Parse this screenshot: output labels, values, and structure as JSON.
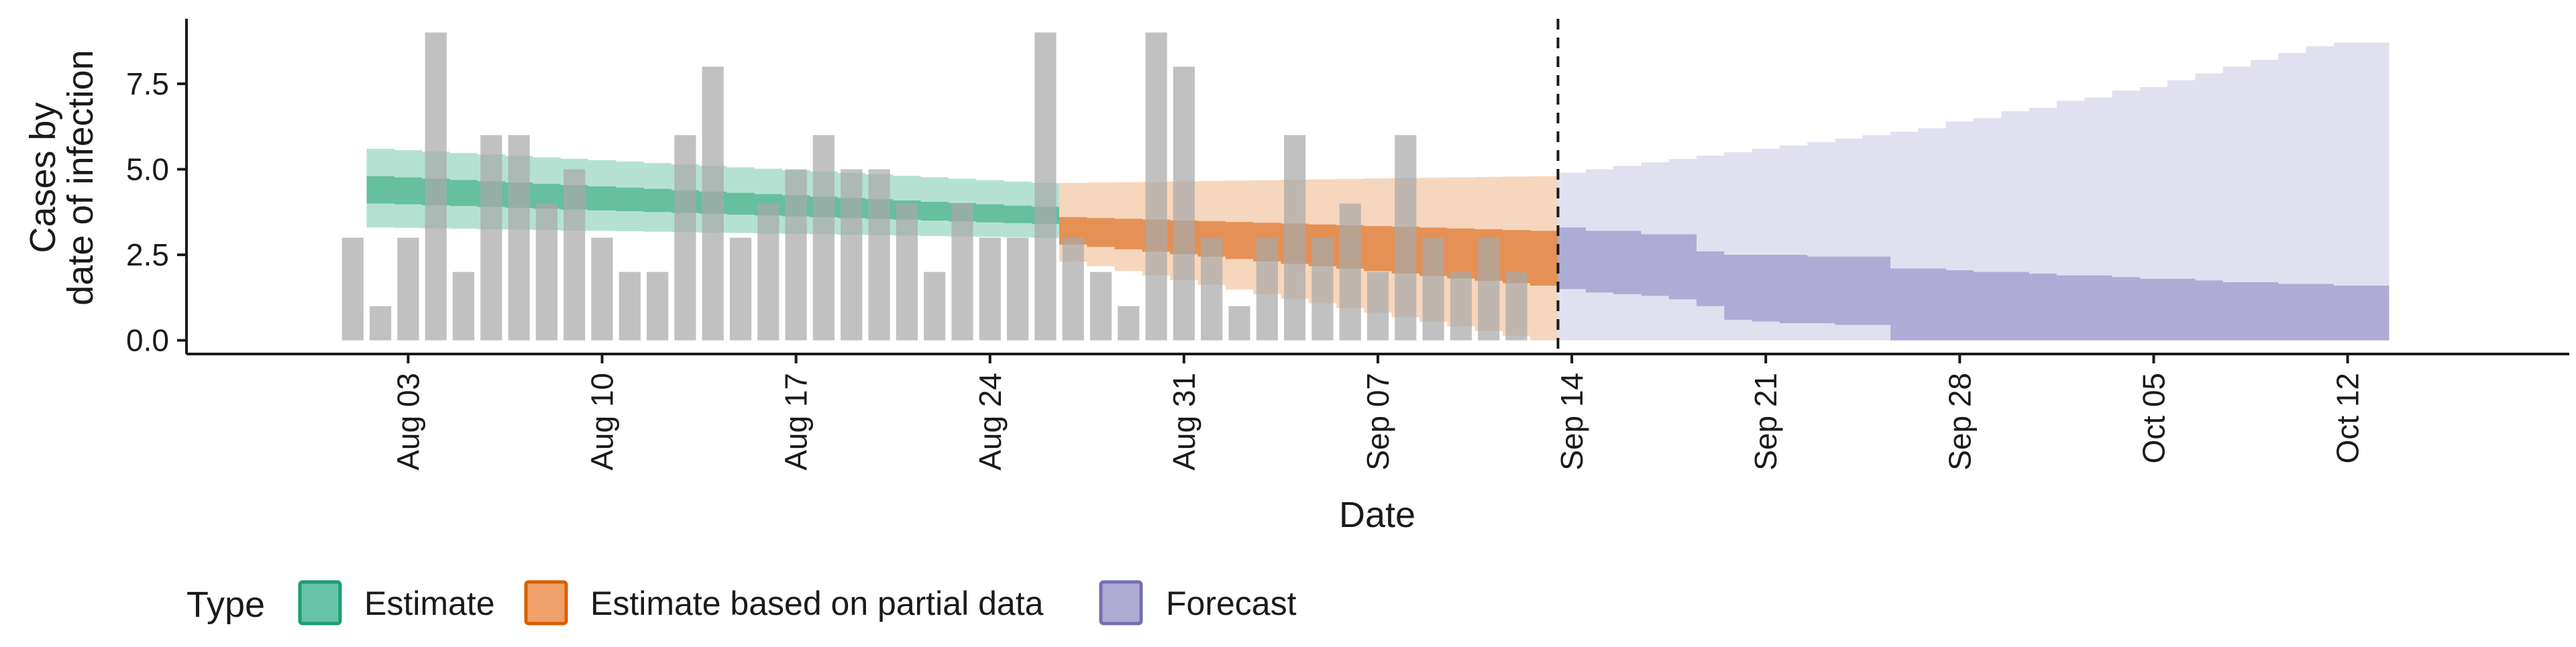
{
  "chart_data": {
    "type": "bar",
    "xlabel": "Date",
    "ylabel_lines": [
      "Cases by",
      "date of infection"
    ],
    "yticks": [
      0.0,
      2.5,
      5.0,
      7.5
    ],
    "ytick_labels": [
      "0.0",
      "2.5",
      "5.0",
      "7.5"
    ],
    "ylim": [
      -0.4,
      9.4
    ],
    "xlim": [
      "2023-07-26",
      "2023-10-20"
    ],
    "xticks": [
      {
        "date": "2023-08-03",
        "label": "Aug 03"
      },
      {
        "date": "2023-08-10",
        "label": "Aug 10"
      },
      {
        "date": "2023-08-17",
        "label": "Aug 17"
      },
      {
        "date": "2023-08-24",
        "label": "Aug 24"
      },
      {
        "date": "2023-08-31",
        "label": "Aug 31"
      },
      {
        "date": "2023-09-07",
        "label": "Sep 07"
      },
      {
        "date": "2023-09-14",
        "label": "Sep 14"
      },
      {
        "date": "2023-09-21",
        "label": "Sep 21"
      },
      {
        "date": "2023-09-28",
        "label": "Sep 28"
      },
      {
        "date": "2023-10-05",
        "label": "Oct 05"
      },
      {
        "date": "2023-10-12",
        "label": "Oct 12"
      }
    ],
    "bar_start_date": "2023-08-01",
    "bars": [
      3,
      1,
      3,
      9,
      2,
      6,
      6,
      4,
      5,
      3,
      2,
      2,
      6,
      8,
      3,
      4,
      5,
      6,
      5,
      5,
      4,
      2,
      4,
      3,
      3,
      9,
      3,
      2,
      1,
      9,
      8,
      3,
      1,
      3,
      6,
      3,
      4,
      2,
      6,
      3,
      2,
      3,
      2
    ],
    "vline_date": "2023-09-13",
    "legend": {
      "title": "Type",
      "items": [
        {
          "label": "Estimate",
          "fill": "#66c2a5",
          "stroke": "#1b9e77"
        },
        {
          "label": "Estimate based on partial data",
          "fill": "#f0a06a",
          "stroke": "#d95f02"
        },
        {
          "label": "Forecast",
          "fill": "#aeaad4",
          "stroke": "#7570b3"
        }
      ]
    },
    "series": [
      {
        "type_index": 0,
        "start_date": "2023-08-02",
        "end_date": "2023-08-26",
        "outer_low": [
          3.3,
          3.0
        ],
        "outer_high": [
          5.6,
          4.6
        ],
        "inner_low": [
          4.0,
          3.4
        ],
        "inner_high": [
          4.8,
          3.9
        ],
        "colors": {
          "outer": "#a8dccb",
          "inner": "#5dbb98"
        }
      },
      {
        "type_index": 1,
        "start_date": "2023-08-27",
        "end_date": "2023-09-13",
        "outer_low": [
          2.3,
          0.0
        ],
        "outer_high": [
          4.6,
          4.8
        ],
        "inner_low": [
          2.8,
          1.6
        ],
        "inner_high": [
          3.6,
          3.2
        ],
        "colors": {
          "outer": "#f5cfb2",
          "inner": "#e38a49"
        }
      },
      {
        "type_index": 2,
        "start_date": "2023-09-14",
        "end_date": "2023-10-13",
        "outer_low": [
          0,
          0,
          0,
          0,
          0,
          0,
          0,
          0,
          0,
          0,
          0,
          0,
          0,
          0,
          0,
          0,
          0,
          0,
          0,
          0,
          0,
          0,
          0,
          0,
          0,
          0,
          0,
          0,
          0,
          0
        ],
        "outer_high": [
          4.9,
          5.0,
          5.1,
          5.2,
          5.3,
          5.4,
          5.5,
          5.6,
          5.7,
          5.8,
          5.9,
          6.0,
          6.1,
          6.2,
          6.4,
          6.5,
          6.7,
          6.8,
          7.0,
          7.1,
          7.3,
          7.4,
          7.6,
          7.8,
          8.0,
          8.2,
          8.4,
          8.6,
          8.7,
          8.7
        ],
        "inner_low": [
          1.5,
          1.4,
          1.35,
          1.3,
          1.2,
          1.0,
          0.6,
          0.55,
          0.5,
          0.5,
          0.45,
          0.45,
          0,
          0,
          0,
          0,
          0,
          0,
          0,
          0,
          0,
          0,
          0,
          0,
          0,
          0,
          0,
          0,
          0,
          0
        ],
        "inner_high": [
          3.3,
          3.2,
          3.2,
          3.1,
          3.1,
          2.6,
          2.5,
          2.5,
          2.5,
          2.45,
          2.45,
          2.45,
          2.1,
          2.1,
          2.05,
          2.0,
          2.0,
          1.95,
          1.9,
          1.9,
          1.85,
          1.8,
          1.8,
          1.75,
          1.7,
          1.7,
          1.65,
          1.65,
          1.6,
          1.6
        ],
        "colors": {
          "outer": "#dcdbec",
          "inner": "#a9a6d3"
        }
      }
    ]
  }
}
